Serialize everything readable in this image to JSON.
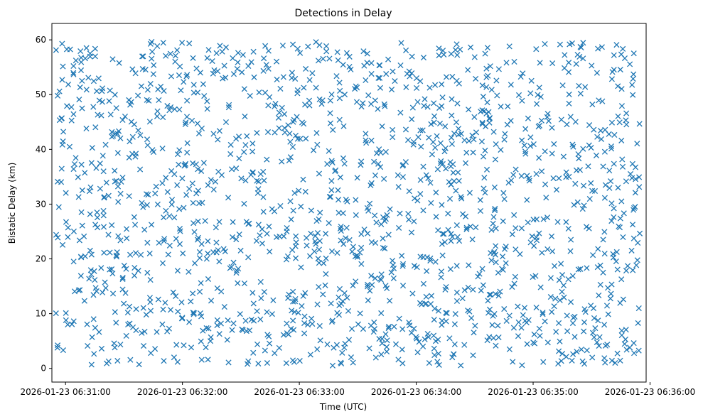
{
  "chart_data": {
    "type": "scatter",
    "title": "Detections in Delay",
    "xlabel": "Time (UTC)",
    "ylabel": "Bistatic Delay (km)",
    "marker": "x",
    "color": "#1f77b4",
    "grid": false,
    "xlim": [
      "2026-01-23 06:30:53",
      "2026-01-23 06:35:58"
    ],
    "ylim": [
      -2.5,
      63
    ],
    "xticks": [
      "2026-01-23 06:31:00",
      "2026-01-23 06:32:00",
      "2026-01-23 06:33:00",
      "2026-01-23 06:34:00",
      "2026-01-23 06:35:00",
      "2026-01-23 06:36:00"
    ],
    "yticks": [
      0,
      10,
      20,
      30,
      40,
      50,
      60
    ],
    "series": [
      {
        "x_start": "2026-01-23 06:30:55",
        "x_end": "2026-01-23 06:35:55",
        "sample_count": 1600,
        "y_range": [
          0.5,
          60
        ],
        "distribution": "approximately uniform random over time and delay"
      }
    ]
  }
}
